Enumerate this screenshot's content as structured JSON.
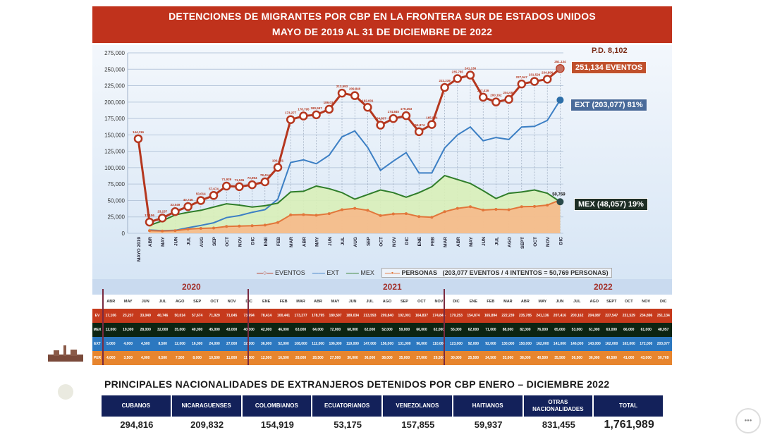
{
  "header": {
    "title_line1": "DETENCIONES DE MIGRANTES POR CBP EN LA FRONTERA SUR DE ESTADOS UNIDOS",
    "title_line2": "MAYO DE 2019 AL 31 DE DICIEMBRE DE 2022"
  },
  "callouts": {
    "pd": "P.D. 8,102",
    "eventos": "251,134 EVENTOS",
    "ext": "EXT (203,077) 81%",
    "mex": "MEX (48,057) 19%",
    "personas_last": "50,769"
  },
  "legend": {
    "eventos": "EVENTOS",
    "ext": "EXT",
    "mex": "MEX",
    "personas": "PERSONAS",
    "note": "(203,077 EVENTOS  / 4 INTENTOS = 50,769 PERSONAS)"
  },
  "colors": {
    "title_bg": "#c0321c",
    "eventos": "#b5371f",
    "ext": "#3c7fc4",
    "mex": "#2f7d2a",
    "personas": "#e2763a",
    "mex_fill": "#d9f0b8",
    "personas_fill": "#f6b98a",
    "nat_header": "#13215a"
  },
  "chart_data": {
    "type": "line",
    "title": "DETENCIONES DE MIGRANTES POR CBP EN LA FRONTERA SUR DE ESTADOS UNIDOS - MAYO DE 2019 AL 31 DE DICIEMBRE DE 2022",
    "xlabel": "",
    "ylabel": "",
    "ylim": [
      0,
      275000
    ],
    "yticks": [
      "0",
      "25,000",
      "50,000",
      "75,000",
      "100,000",
      "125,000",
      "150,000",
      "175,000",
      "200,000",
      "225,000",
      "250,000",
      "275,000"
    ],
    "grid": true,
    "legend_position": "bottom",
    "categories": [
      "MAYO 2019",
      "ABR",
      "MAY",
      "JUN",
      "JUL",
      "AUG",
      "SEP",
      "OCT",
      "NOV",
      "DIC",
      "ENE",
      "FEB",
      "MAR",
      "ABR",
      "MAY",
      "JUN",
      "JUL",
      "AUG",
      "SEP",
      "OCT",
      "NOV",
      "DIC",
      "ENE",
      "FEB",
      "MAR",
      "ABR",
      "MAY",
      "JUN",
      "JUL",
      "AGO",
      "SEPT",
      "OCT",
      "NOV",
      "DIC"
    ],
    "series": [
      {
        "name": "EVENTOS",
        "values": [
          144116,
          17106,
          23237,
          33049,
          40746,
          50014,
          57674,
          71929,
          71045,
          73994,
          78414,
          100441,
          173277,
          178795,
          180597,
          189034,
          213593,
          209840,
          192001,
          164837,
          174845,
          179253,
          154874,
          165894,
          222239,
          235785,
          241136,
          207416,
          200162,
          204087,
          227547,
          231529,
          234896,
          251134
        ]
      },
      {
        "name": "EXT",
        "values": [
          null,
          5000,
          4000,
          4500,
          8500,
          12000,
          16000,
          24000,
          27000,
          32000,
          36000,
          52000,
          108000,
          112000,
          106000,
          119000,
          147000,
          156000,
          131000,
          96000,
          110000,
          123000,
          92000,
          92000,
          130000,
          150000,
          162000,
          141000,
          146000,
          143000,
          162000,
          163000,
          172000,
          203077
        ]
      },
      {
        "name": "MEX",
        "values": [
          null,
          12000,
          19000,
          28000,
          32000,
          35000,
          40000,
          45000,
          43000,
          40000,
          42000,
          46000,
          63000,
          64000,
          72000,
          68000,
          62000,
          52000,
          59000,
          66000,
          62000,
          55000,
          62000,
          71000,
          88000,
          82000,
          76000,
          65000,
          53000,
          61000,
          63000,
          66000,
          61000,
          48057
        ]
      },
      {
        "name": "PERSONAS",
        "values": [
          null,
          4000,
          3500,
          4000,
          6500,
          7500,
          8000,
          10500,
          11000,
          11500,
          12500,
          16500,
          28000,
          28500,
          27500,
          30000,
          36000,
          38000,
          35000,
          27000,
          29500,
          30000,
          25500,
          24500,
          33000,
          38000,
          40500,
          35500,
          36500,
          36000,
          40500,
          41000,
          43000,
          50769
        ]
      }
    ],
    "annotations": [
      "P.D. 8,102",
      "251,134 EVENTOS",
      "EXT (203,077) 81%",
      "MEX (48,057) 19%",
      "50,769"
    ]
  },
  "table": {
    "years": [
      "2020",
      "2021",
      "2022"
    ],
    "months": [
      "ABR",
      "MAY",
      "JUN",
      "JUL",
      "AGO",
      "SEP",
      "OCT",
      "NOV",
      "DIC",
      "ENE",
      "FEB",
      "MAR",
      "ABR",
      "MAY",
      "JUN",
      "JUL",
      "AGO",
      "SEP",
      "OCT",
      "NOV",
      "DIC",
      "ENE",
      "FEB",
      "MAR",
      "ABR",
      "MAY",
      "JUN",
      "JUL",
      "AGO",
      "SEPT",
      "OCT",
      "NOV",
      "DIC"
    ],
    "row_labels": [
      "EV",
      "MEX",
      "EXT",
      "PER"
    ]
  },
  "nationalities": {
    "title": "PRINCIPALES NACIONALIDADES DE EXTRANJEROS DETENIDOS POR CBP ENERO – DICIEMBRE 2022",
    "headers": [
      "CUBANOS",
      "NICARAGUENSES",
      "COLOMBIANOS",
      "ECUATORIANOS",
      "VENEZOLANOS",
      "HAITIANOS",
      "OTRAS NACIONALIDADES",
      "TOTAL"
    ],
    "values": [
      "294,816",
      "209,832",
      "154,919",
      "53,175",
      "157,855",
      "59,937",
      "831,455",
      "1,761,989"
    ]
  }
}
